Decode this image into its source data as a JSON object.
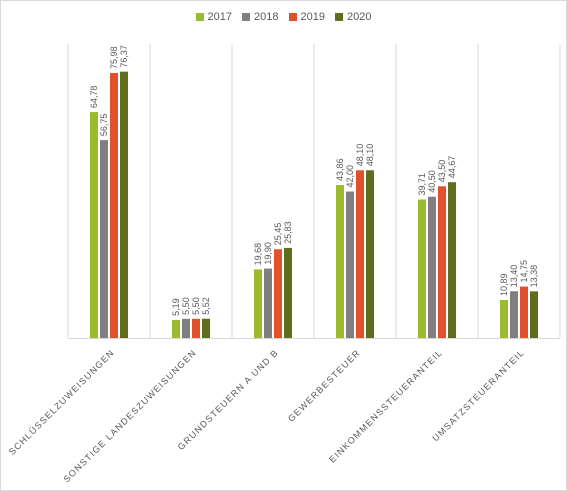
{
  "chart_data": {
    "type": "bar",
    "categories": [
      "SCHLÜSSELZUWEISUNGEN",
      "SONSTIGE LANDESZUWEISUNGEN",
      "GRUNDSTEUERN A UND B",
      "GEWERBESTEUER",
      "EINKOMMENSSTEUERANTEIL",
      "UMSATZSTEUERANTEIL"
    ],
    "series": [
      {
        "name": "2017",
        "color": "#9bbb2e",
        "values": [
          64.78,
          5.19,
          19.68,
          43.86,
          39.71,
          10.89
        ],
        "labels": [
          "64,78",
          "5,19",
          "19,68",
          "43,86",
          "39,71",
          "10,89"
        ]
      },
      {
        "name": "2018",
        "color": "#7f7f7f",
        "values": [
          56.75,
          5.5,
          19.9,
          42.0,
          40.5,
          13.4
        ],
        "labels": [
          "56,75",
          "5,50",
          "19,90",
          "42,00",
          "40,50",
          "13,40"
        ]
      },
      {
        "name": "2019",
        "color": "#e0522b",
        "values": [
          75.98,
          5.5,
          25.45,
          48.1,
          43.5,
          14.75
        ],
        "labels": [
          "75,98",
          "5,50",
          "25,45",
          "48,10",
          "43,50",
          "14,75"
        ]
      },
      {
        "name": "2020",
        "color": "#5f6e1c",
        "values": [
          76.37,
          5.52,
          25.83,
          48.1,
          44.67,
          13.38
        ],
        "labels": [
          "76,37",
          "5,52",
          "25,83",
          "48,10",
          "44,67",
          "13,38"
        ]
      }
    ],
    "ylim": [
      0,
      80
    ],
    "legend": "top",
    "grid": "vertical separators"
  }
}
